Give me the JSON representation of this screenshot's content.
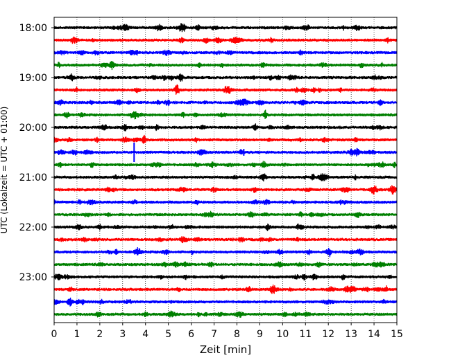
{
  "chart_data": {
    "type": "line",
    "title": "",
    "xlabel": "Zeit  [min]",
    "ylabel": "UTC (Lokalzeit = UTC + 01:00)",
    "xlim": [
      0,
      15
    ],
    "x_ticks": [
      "0",
      "1",
      "2",
      "3",
      "4",
      "5",
      "6",
      "7",
      "8",
      "9",
      "10",
      "11",
      "12",
      "13",
      "14",
      "15"
    ],
    "y_ticks": [
      "18:00",
      "19:00",
      "20:00",
      "21:00",
      "22:00",
      "23:00"
    ],
    "grid": "vertical dotted at each minute",
    "colors": [
      "#000000",
      "#ff0000",
      "#0000ff",
      "#008000"
    ],
    "traces": [
      {
        "start": "18:00",
        "color": "#000000"
      },
      {
        "start": "18:15",
        "color": "#ff0000"
      },
      {
        "start": "18:30",
        "color": "#0000ff"
      },
      {
        "start": "18:45",
        "color": "#008000"
      },
      {
        "start": "19:00",
        "color": "#000000"
      },
      {
        "start": "19:15",
        "color": "#ff0000"
      },
      {
        "start": "19:30",
        "color": "#0000ff"
      },
      {
        "start": "19:45",
        "color": "#008000"
      },
      {
        "start": "20:00",
        "color": "#000000"
      },
      {
        "start": "20:15",
        "color": "#ff0000"
      },
      {
        "start": "20:30",
        "color": "#0000ff",
        "events": [
          {
            "t": 3.5,
            "amp": 1.0
          },
          {
            "t": 8.3,
            "amp": 0.35
          }
        ]
      },
      {
        "start": "20:45",
        "color": "#008000"
      },
      {
        "start": "21:00",
        "color": "#000000"
      },
      {
        "start": "21:15",
        "color": "#ff0000"
      },
      {
        "start": "21:30",
        "color": "#0000ff"
      },
      {
        "start": "21:45",
        "color": "#008000"
      },
      {
        "start": "22:00",
        "color": "#000000"
      },
      {
        "start": "22:15",
        "color": "#ff0000"
      },
      {
        "start": "22:30",
        "color": "#0000ff"
      },
      {
        "start": "22:45",
        "color": "#008000"
      },
      {
        "start": "23:00",
        "color": "#000000"
      },
      {
        "start": "23:15",
        "color": "#ff0000"
      },
      {
        "start": "23:30",
        "color": "#0000ff"
      },
      {
        "start": "23:45",
        "color": "#008000"
      }
    ]
  }
}
